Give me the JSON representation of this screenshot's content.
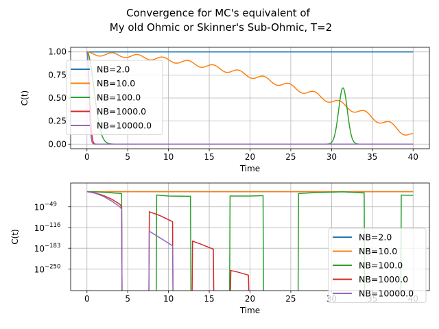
{
  "figure": {
    "title_line1": "Convergence for MC's equivalent of",
    "title_line2": "My old Ohmic or Skinner's Sub-Ohmic, T=2"
  },
  "chart_data": [
    {
      "type": "line",
      "xlabel": "Time",
      "ylabel": "C(t)",
      "xlim": [
        -2,
        42
      ],
      "ylim": [
        -0.05,
        1.05
      ],
      "xticks": [
        0,
        5,
        10,
        15,
        20,
        25,
        30,
        35,
        40
      ],
      "yticks": [
        0.0,
        0.25,
        0.5,
        0.75,
        1.0
      ],
      "ytick_labels": [
        "0.00",
        "0.25",
        "0.50",
        "0.75",
        "1.00"
      ],
      "grid": true,
      "legend_position": "upper-left",
      "series": [
        {
          "name": "NB=2.0",
          "color": "#1f77b4",
          "description": "constant at 1.0",
          "points": [
            [
              0,
              1.0
            ],
            [
              40,
              1.0
            ]
          ]
        },
        {
          "name": "NB=10.0",
          "color": "#ff7f0e",
          "description": "slow oscillating decay",
          "points": [
            [
              0,
              1.0
            ],
            [
              2,
              0.97
            ],
            [
              5,
              0.94
            ],
            [
              10,
              0.91
            ],
            [
              15,
              0.85
            ],
            [
              20,
              0.76
            ],
            [
              25,
              0.66
            ],
            [
              30,
              0.53
            ],
            [
              35,
              0.39
            ],
            [
              40,
              0.2
            ]
          ]
        },
        {
          "name": "NB=100.0",
          "color": "#2ca02c",
          "description": "fast decay to 0, revival peak near t=31.4",
          "points": [
            [
              0,
              1.0
            ],
            [
              1,
              0.5
            ],
            [
              2,
              0.1
            ],
            [
              3,
              0.0
            ],
            [
              29,
              0.0
            ],
            [
              31.4,
              0.61
            ],
            [
              33.5,
              0.0
            ],
            [
              40,
              0.0
            ]
          ]
        },
        {
          "name": "NB=1000.0",
          "color": "#d62728",
          "description": "rapid decay to 0",
          "points": [
            [
              0,
              1.0
            ],
            [
              0.5,
              0.3
            ],
            [
              0.8,
              0.0
            ],
            [
              40,
              0.0
            ]
          ]
        },
        {
          "name": "NB=10000.0",
          "color": "#9467bd",
          "description": "rapid decay to 0",
          "points": [
            [
              0,
              1.0
            ],
            [
              0.4,
              0.2
            ],
            [
              0.7,
              0.0
            ],
            [
              40,
              0.0
            ]
          ]
        }
      ]
    },
    {
      "type": "line",
      "yscale": "log",
      "xlabel": "Time",
      "ylabel": "C(t)",
      "xlim": [
        -2,
        42
      ],
      "ylim_log10": [
        -320,
        28
      ],
      "xticks": [
        0,
        5,
        10,
        15,
        20,
        25,
        30,
        35,
        40
      ],
      "yticks_log10": [
        -49,
        -116,
        -183,
        -250
      ],
      "ytick_labels": [
        "10",
        "10",
        "10",
        "10"
      ],
      "ytick_exponents": [
        "−49",
        "−116",
        "−183",
        "−250"
      ],
      "grid": true,
      "legend_position": "center-right",
      "series": [
        {
          "name": "NB=2.0",
          "color": "#1f77b4",
          "segments": [
            [
              [
                0,
                0
              ],
              [
                40,
                0
              ]
            ]
          ]
        },
        {
          "name": "NB=10.0",
          "color": "#ff7f0e",
          "segments": [
            [
              [
                0,
                0
              ],
              [
                40,
                0
              ]
            ]
          ]
        },
        {
          "name": "NB=100.0",
          "color": "#2ca02c",
          "segments": [
            [
              [
                0,
                0
              ],
              [
                1.5,
                -1
              ],
              [
                2.7,
                -3
              ],
              [
                3.6,
                -5
              ],
              [
                4.25,
                -6
              ],
              [
                4.3,
                -320
              ]
            ],
            [
              [
                8.5,
                -320
              ],
              [
                8.55,
                -11
              ],
              [
                10,
                -14
              ],
              [
                12.7,
                -15
              ],
              [
                12.75,
                -320
              ]
            ],
            [
              [
                17.5,
                -320
              ],
              [
                17.55,
                -14
              ],
              [
                20,
                -14
              ],
              [
                21.6,
                -13
              ],
              [
                21.65,
                -320
              ]
            ],
            [
              [
                25.9,
                -320
              ],
              [
                25.95,
                -6
              ],
              [
                28,
                -3
              ],
              [
                31.4,
                -0.5
              ],
              [
                34,
                -4
              ],
              [
                34.05,
                -320
              ]
            ],
            [
              [
                38.5,
                -320
              ],
              [
                38.55,
                -11
              ],
              [
                40,
                -12
              ]
            ]
          ]
        },
        {
          "name": "NB=1000.0",
          "color": "#d62728",
          "segments": [
            [
              [
                0,
                0
              ],
              [
                1,
                -4
              ],
              [
                2,
                -12
              ],
              [
                3,
                -24
              ],
              [
                4,
                -40
              ],
              [
                4.25,
                -48
              ],
              [
                4.3,
                -320
              ]
            ],
            [
              [
                7.6,
                -320
              ],
              [
                7.65,
                -65
              ],
              [
                9,
                -78
              ],
              [
                10.5,
                -97
              ],
              [
                10.55,
                -320
              ]
            ],
            [
              [
                12.9,
                -320
              ],
              [
                12.95,
                -160
              ],
              [
                14,
                -170
              ],
              [
                15.5,
                -186
              ],
              [
                15.55,
                -320
              ]
            ],
            [
              [
                17.6,
                -320
              ],
              [
                17.65,
                -255
              ],
              [
                18.5,
                -260
              ],
              [
                19.8,
                -270
              ],
              [
                19.85,
                -320
              ]
            ]
          ]
        },
        {
          "name": "NB=10000.0",
          "color": "#9467bd",
          "segments": [
            [
              [
                0,
                0
              ],
              [
                1,
                -5
              ],
              [
                2,
                -15
              ],
              [
                3,
                -30
              ],
              [
                4,
                -48
              ],
              [
                4.25,
                -56
              ],
              [
                4.3,
                -320
              ]
            ],
            [
              [
                7.6,
                -320
              ],
              [
                7.65,
                -128
              ],
              [
                9,
                -150
              ],
              [
                10.5,
                -175
              ],
              [
                10.55,
                -320
              ]
            ]
          ]
        }
      ]
    }
  ]
}
